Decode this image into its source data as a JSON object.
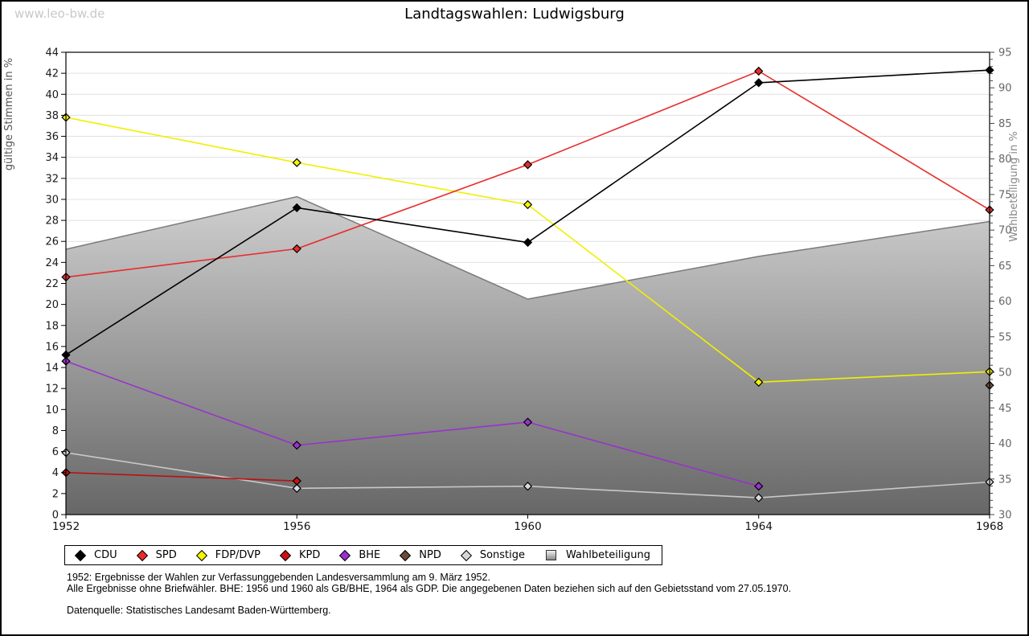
{
  "page": {
    "watermark": "www.leo-bw.de",
    "title": "Landtagswahlen: Ludwigsburg",
    "footnotes": [
      "1952: Ergebnisse der Wahlen zur Verfassunggebenden Landesversammlung am 9. März 1952.",
      "Alle Ergebnisse ohne Briefwähler. BHE: 1956 und 1960 als GB/BHE, 1964 als GDP. Die angegebenen Daten beziehen sich auf den Gebietsstand vom 27.05.1970."
    ],
    "source": "Datenquelle: Statistisches Landesamt Baden-Württemberg."
  },
  "chart_data": {
    "type": "line",
    "title": "Landtagswahlen: Ludwigsburg",
    "x": [
      1952,
      1956,
      1960,
      1964,
      1968
    ],
    "x_ticks": [
      "1952",
      "1956",
      "1960",
      "1964",
      "1968"
    ],
    "grid": true,
    "legend_position": "bottom",
    "axes": {
      "left": {
        "label": "gültige Stimmen in %",
        "min": 0,
        "max": 44,
        "tick_step": 2
      },
      "right": {
        "label": "Wahlbeteiligung in %",
        "min": 30,
        "max": 95,
        "tick_step": 5,
        "minor_step": 1
      }
    },
    "area_series": {
      "name": "Wahlbeteiligung",
      "axis": "right",
      "values": [
        67.3,
        74.7,
        60.3,
        66.3,
        71.2
      ],
      "gradient": [
        "#ffffff",
        "#676767"
      ],
      "edge_color": "#7a7a7a"
    },
    "series": [
      {
        "name": "CDU",
        "color": "#000000",
        "marker_fill": "#000000",
        "values": [
          15.2,
          29.2,
          25.9,
          41.1,
          42.3
        ]
      },
      {
        "name": "SPD",
        "color": "#e82c2c",
        "marker_fill": "#e82c2c",
        "values": [
          22.6,
          25.3,
          33.3,
          42.2,
          29.0
        ]
      },
      {
        "name": "FDP/DVP",
        "color": "#f0f000",
        "marker_fill": "#f5f500",
        "values": [
          37.8,
          33.5,
          29.5,
          12.6,
          13.6
        ]
      },
      {
        "name": "KPD",
        "color": "#bb1111",
        "marker_fill": "#cc1111",
        "values": [
          4.0,
          3.2,
          null,
          null,
          null
        ]
      },
      {
        "name": "BHE",
        "color": "#9932cc",
        "marker_fill": "#9932cc",
        "values": [
          14.6,
          6.6,
          8.8,
          2.7,
          null
        ]
      },
      {
        "name": "NPD",
        "color": "#6b4a38",
        "marker_fill": "#6b4a38",
        "values": [
          null,
          null,
          null,
          null,
          12.3
        ]
      },
      {
        "name": "Sonstige",
        "color": "#c8c8c8",
        "marker_fill": "#d8d8d8",
        "values": [
          5.9,
          2.5,
          2.7,
          1.6,
          3.1
        ]
      }
    ],
    "legend": [
      "CDU",
      "SPD",
      "FDP/DVP",
      "KPD",
      "BHE",
      "NPD",
      "Sonstige",
      "Wahlbeteiligung"
    ]
  }
}
